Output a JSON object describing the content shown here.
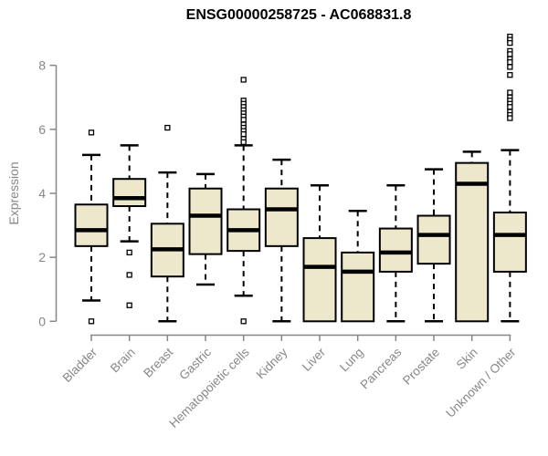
{
  "chart_data": {
    "type": "boxplot",
    "title": "ENSG00000258725 - AC068831.8",
    "ylabel": "Expression",
    "xlabel": "",
    "ylim": [
      0,
      9
    ],
    "yticks": [
      0,
      2,
      4,
      6,
      8
    ],
    "grid": false,
    "legend_position": "none",
    "categories": [
      "Bladder",
      "Brain",
      "Breast",
      "Gastric",
      "Hematopoietic cells",
      "Kidney",
      "Liver",
      "Lung",
      "Pancreas",
      "Prostate",
      "Skin",
      "Unknown / Other"
    ],
    "boxes": [
      {
        "category": "Bladder",
        "whisker_low": 0.65,
        "q1": 2.35,
        "median": 2.85,
        "q3": 3.65,
        "whisker_high": 5.2,
        "outliers": [
          5.9,
          0
        ]
      },
      {
        "category": "Brain",
        "whisker_low": 2.5,
        "q1": 3.6,
        "median": 3.85,
        "q3": 4.45,
        "whisker_high": 5.5,
        "outliers": [
          2.15,
          1.45,
          0.5
        ]
      },
      {
        "category": "Breast",
        "whisker_low": 0.0,
        "q1": 1.4,
        "median": 2.25,
        "q3": 3.05,
        "whisker_high": 4.65,
        "outliers": [
          6.05
        ]
      },
      {
        "category": "Gastric",
        "whisker_low": 1.15,
        "q1": 2.1,
        "median": 3.3,
        "q3": 4.15,
        "whisker_high": 4.6,
        "outliers": []
      },
      {
        "category": "Hematopoietic cells",
        "whisker_low": 0.8,
        "q1": 2.2,
        "median": 2.85,
        "q3": 3.5,
        "whisker_high": 5.5,
        "outliers": [
          7.55,
          6.9,
          6.8,
          6.7,
          6.6,
          6.5,
          6.4,
          6.3,
          6.15,
          6.05,
          5.95,
          5.85,
          5.7,
          5.6,
          0
        ]
      },
      {
        "category": "Kidney",
        "whisker_low": 0.0,
        "q1": 2.35,
        "median": 3.5,
        "q3": 4.15,
        "whisker_high": 5.05,
        "outliers": []
      },
      {
        "category": "Liver",
        "whisker_low": 0.0,
        "q1": 0.0,
        "median": 1.7,
        "q3": 2.6,
        "whisker_high": 4.25,
        "outliers": []
      },
      {
        "category": "Lung",
        "whisker_low": 0.0,
        "q1": 0.0,
        "median": 1.55,
        "q3": 2.15,
        "whisker_high": 3.45,
        "outliers": []
      },
      {
        "category": "Pancreas",
        "whisker_low": 0.0,
        "q1": 1.55,
        "median": 2.15,
        "q3": 2.9,
        "whisker_high": 4.25,
        "outliers": []
      },
      {
        "category": "Prostate",
        "whisker_low": 0.0,
        "q1": 1.8,
        "median": 2.7,
        "q3": 3.3,
        "whisker_high": 4.75,
        "outliers": []
      },
      {
        "category": "Skin",
        "whisker_low": 0.0,
        "q1": 0.0,
        "median": 4.3,
        "q3": 4.95,
        "whisker_high": 5.3,
        "outliers": []
      },
      {
        "category": "Unknown / Other",
        "whisker_low": 0.0,
        "q1": 1.55,
        "median": 2.7,
        "q3": 3.4,
        "whisker_high": 5.35,
        "outliers": [
          8.9,
          8.8,
          8.7,
          8.45,
          8.35,
          8.2,
          8.1,
          7.95,
          7.7,
          7.15,
          7.0,
          6.9,
          6.8,
          6.7,
          6.55,
          6.45,
          6.35
        ]
      }
    ],
    "style": {
      "box_fill": "#EDE7CB",
      "box_border": "#000000",
      "median_color": "#000000",
      "whisker_style": "dashed",
      "outlier_marker": "open-square",
      "axis_color": "#878787",
      "title_color": "#000000",
      "background": "#FFFFFF"
    }
  }
}
